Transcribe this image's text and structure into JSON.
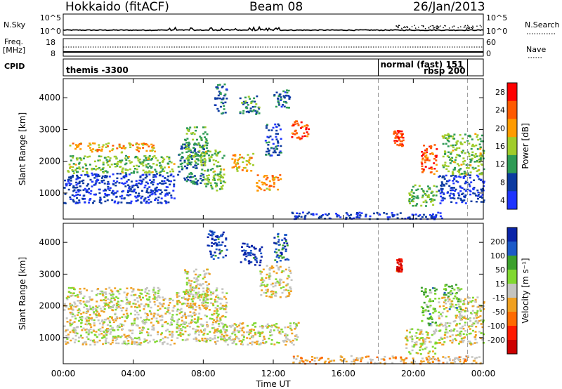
{
  "header": {
    "station": "Hokkaido (fitACF)",
    "beam": "Beam 08",
    "date": "26/Jan/2013"
  },
  "strip": {
    "nsky_label": "N.Sky",
    "nsky_ticks": [
      "10^5",
      "10^0"
    ],
    "nsearch_label": "N.Search",
    "freq_label": "Freq.",
    "freq_unit": "[MHz]",
    "freq_ticks": [
      "18",
      "8"
    ],
    "nave_ticks": [
      "60",
      "0"
    ],
    "nave_label": "Nave",
    "cpid_label": "CPID",
    "cpid_entries": [
      {
        "text": "themis -3300",
        "start_hour": 0
      },
      {
        "text": "normal (fast) 151",
        "start_hour": 18.0
      },
      {
        "text": "rbsp 200",
        "start_hour": 23.1
      }
    ]
  },
  "chart_data": [
    {
      "type": "heatmap",
      "title": "",
      "ylabel": "Slant Range [km]",
      "xlabel": "",
      "x_range_hours": [
        0,
        24
      ],
      "xticks": [
        "00:00",
        "04:00",
        "08:00",
        "12:00",
        "16:00",
        "20:00",
        "00:00"
      ],
      "ylim": [
        180,
        4600
      ],
      "yticks": [
        1000,
        2000,
        3000,
        4000
      ],
      "colorbar": {
        "label": "Power [dB]",
        "ticks": [
          28,
          24,
          20,
          16,
          12,
          8,
          4
        ],
        "colors": [
          "#ff0000",
          "#ff5a00",
          "#ff9b00",
          "#a0cc2a",
          "#2e9a55",
          "#0c3aa0",
          "#1e34ff"
        ]
      },
      "regions": [
        {
          "t0": 0.0,
          "t1": 6.3,
          "r0": 700,
          "r1": 1650,
          "level": 0.9
        },
        {
          "t0": 0.2,
          "t1": 6.3,
          "r0": 1650,
          "r1": 2200,
          "level": 0.55
        },
        {
          "t0": 0.3,
          "t1": 5.2,
          "r0": 2300,
          "r1": 2600,
          "level": 0.35
        },
        {
          "t0": 6.5,
          "t1": 8.0,
          "r0": 1300,
          "r1": 2600,
          "level": 0.75
        },
        {
          "t0": 8.0,
          "t1": 9.2,
          "r0": 1100,
          "r1": 2400,
          "level": 0.55
        },
        {
          "t0": 6.9,
          "t1": 8.2,
          "r0": 1900,
          "r1": 3100,
          "level": 0.6
        },
        {
          "t0": 8.6,
          "t1": 9.3,
          "r0": 3500,
          "r1": 4450,
          "level": 0.8
        },
        {
          "t0": 10.0,
          "t1": 11.2,
          "r0": 3500,
          "r1": 4100,
          "level": 0.7
        },
        {
          "t0": 11.5,
          "t1": 12.4,
          "r0": 2200,
          "r1": 3200,
          "level": 0.85
        },
        {
          "t0": 12.0,
          "t1": 12.9,
          "r0": 3700,
          "r1": 4300,
          "level": 0.8
        },
        {
          "t0": 9.6,
          "t1": 10.8,
          "r0": 1700,
          "r1": 2300,
          "level": 0.35
        },
        {
          "t0": 11.0,
          "t1": 12.4,
          "r0": 1100,
          "r1": 1600,
          "level": 0.3
        },
        {
          "t0": 13.0,
          "t1": 14.0,
          "r0": 2700,
          "r1": 3300,
          "level": 0.15
        },
        {
          "t0": 13.0,
          "t1": 21.6,
          "r0": 200,
          "r1": 420,
          "level": 0.9
        },
        {
          "t0": 18.8,
          "t1": 19.4,
          "r0": 2500,
          "r1": 3000,
          "level": 0.1
        },
        {
          "t0": 19.7,
          "t1": 21.3,
          "r0": 600,
          "r1": 1300,
          "level": 0.6
        },
        {
          "t0": 20.4,
          "t1": 21.3,
          "r0": 1600,
          "r1": 2600,
          "level": 0.15
        },
        {
          "t0": 21.4,
          "t1": 24.0,
          "r0": 700,
          "r1": 1600,
          "level": 0.9
        },
        {
          "t0": 21.6,
          "t1": 24.0,
          "r0": 1600,
          "r1": 2900,
          "level": 0.55
        }
      ]
    },
    {
      "type": "heatmap",
      "title": "",
      "ylabel": "Slant Range [km]",
      "xlabel": "Time UT",
      "x_range_hours": [
        0,
        24
      ],
      "xticks": [
        "00:00",
        "04:00",
        "08:00",
        "12:00",
        "16:00",
        "20:00",
        "00:00"
      ],
      "ylim": [
        180,
        4600
      ],
      "yticks": [
        1000,
        2000,
        3000,
        4000
      ],
      "colorbar": {
        "label": "Velocity [m s⁻¹]",
        "ticks": [
          200,
          100,
          50,
          15,
          -15,
          -50,
          -100,
          -200
        ],
        "colors": [
          "#0a24a8",
          "#1c5ac8",
          "#3ca02c",
          "#80d830",
          "#c4c4c0",
          "#f0a020",
          "#ff6a00",
          "#ff1a00",
          "#cc0000"
        ]
      },
      "regions": [
        {
          "t0": 0.0,
          "t1": 6.3,
          "r0": 800,
          "r1": 2300,
          "level": 0.5
        },
        {
          "t0": 0.2,
          "t1": 5.5,
          "r0": 2300,
          "r1": 2600,
          "level": 0.5
        },
        {
          "t0": 6.4,
          "t1": 9.3,
          "r0": 900,
          "r1": 2600,
          "level": 0.5
        },
        {
          "t0": 6.9,
          "t1": 8.3,
          "r0": 2000,
          "r1": 3200,
          "level": 0.5
        },
        {
          "t0": 8.2,
          "t1": 9.3,
          "r0": 3500,
          "r1": 4400,
          "level": 0.05
        },
        {
          "t0": 10.1,
          "t1": 11.3,
          "r0": 3300,
          "r1": 4000,
          "level": 0.05
        },
        {
          "t0": 12.0,
          "t1": 12.9,
          "r0": 3400,
          "r1": 4300,
          "level": 0.12
        },
        {
          "t0": 11.2,
          "t1": 13.0,
          "r0": 2300,
          "r1": 3300,
          "level": 0.5
        },
        {
          "t0": 8.6,
          "t1": 13.4,
          "r0": 800,
          "r1": 1500,
          "level": 0.5
        },
        {
          "t0": 13.0,
          "t1": 24.0,
          "r0": 200,
          "r1": 450,
          "level": 0.62
        },
        {
          "t0": 19.5,
          "t1": 21.3,
          "r0": 500,
          "r1": 1300,
          "level": 0.5
        },
        {
          "t0": 20.4,
          "t1": 21.3,
          "r0": 1400,
          "r1": 2600,
          "level": 0.32
        },
        {
          "t0": 21.4,
          "t1": 24.0,
          "r0": 800,
          "r1": 2300,
          "level": 0.5
        },
        {
          "t0": 21.7,
          "t1": 22.7,
          "r0": 1900,
          "r1": 2700,
          "level": 0.32
        },
        {
          "t0": 19.0,
          "t1": 19.3,
          "r0": 3100,
          "r1": 3500,
          "level": 0.95
        }
      ]
    }
  ]
}
